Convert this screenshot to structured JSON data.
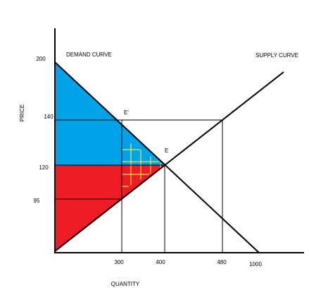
{
  "title": {
    "demand": "DEMAND CURVE",
    "supply": "SUPPLY CURVE"
  },
  "axes": {
    "y_label": "PRICE",
    "x_label": "QUANTITY"
  },
  "price_labels": [
    "200",
    "140",
    "120",
    "95"
  ],
  "quantity_labels": [
    "300",
    "400",
    "480",
    "1000"
  ],
  "points": {
    "e_prime": "E'",
    "e": "E"
  }
}
